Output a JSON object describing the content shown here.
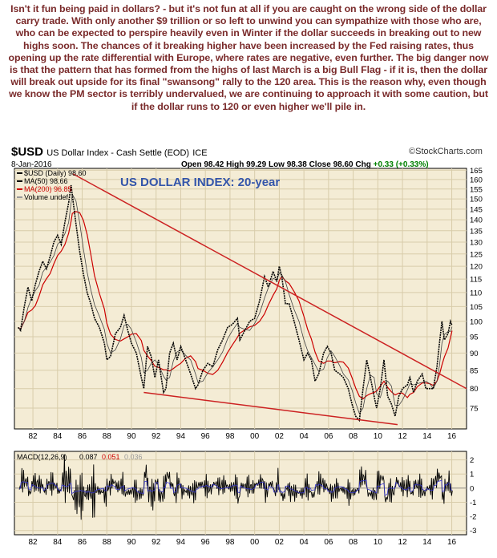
{
  "intro_text": "Isn't it fun being paid in dollars? - but it's not fun at all if you are caught on the wrong side of the dollar carry trade. With only another $9 trillion or so left to unwind you can sympathize with those who are, who can be expected to perspire heavily even in Winter if the dollar succeeds in breaking out to new highs soon. The chances of it breaking higher have been increased by the Fed raising rates, thus opening up the rate differential with Europe, where rates are negative, even further. The big danger now is that the pattern that has formed from the highs of last March is a big Bull Flag - if it is, then the dollar will break out upside for its final \"swansong\" rally to the 120 area. This is the reason why, even though we know the PM sector is terribly undervalued, we are continuing to approach it with some caution, but if the dollar runs to 120 or even higher we'll pile in.",
  "header": {
    "symbol": "$USD",
    "description": "US Dollar Index - Cash Settle (EOD)",
    "exchange": "ICE",
    "date": "8-Jan-2016",
    "open_label": "Open",
    "open": "98.42",
    "high_label": "High",
    "high": "99.29",
    "low_label": "Low",
    "low": "98.38",
    "close_label": "Close",
    "close": "98.60",
    "chg_label": "Chg",
    "chg": "+0.33 (+0.33%)",
    "brand": "©StockCharts.com"
  },
  "chart_data": [
    {
      "type": "line",
      "title": "US DOLLAR INDEX: 20-year",
      "legend": [
        {
          "label": "$USD (Daily) 98.60",
          "color": "#000000"
        },
        {
          "label": "MA(50) 98.66",
          "color": "#000000"
        },
        {
          "label": "MA(200) 96.85",
          "color": "#cc0000"
        },
        {
          "label": "Volume undef",
          "color": "#999999"
        }
      ],
      "legend_position": "top-left",
      "x_range": [
        1980.5,
        2017.2
      ],
      "ylim": [
        70,
        166
      ],
      "log_scale": true,
      "grid": true,
      "x_tick_labels": [
        "82",
        "84",
        "86",
        "88",
        "90",
        "92",
        "94",
        "96",
        "98",
        "00",
        "02",
        "04",
        "06",
        "08",
        "10",
        "12",
        "14",
        "16"
      ],
      "y_tick_labels": [
        "75",
        "80",
        "85",
        "90",
        "95",
        "100",
        "105",
        "110",
        "115",
        "120",
        "125",
        "130",
        "135",
        "140",
        "145",
        "150",
        "155",
        "160",
        "165"
      ],
      "series": [
        {
          "name": "$USD",
          "color": "#000000",
          "points": [
            [
              1980.8,
              98
            ],
            [
              1981.0,
              97
            ],
            [
              1981.3,
              105
            ],
            [
              1981.6,
              112
            ],
            [
              1981.9,
              107
            ],
            [
              1982.2,
              113
            ],
            [
              1982.5,
              118
            ],
            [
              1982.8,
              122
            ],
            [
              1983.1,
              119
            ],
            [
              1983.4,
              124
            ],
            [
              1983.7,
              130
            ],
            [
              1984.0,
              133
            ],
            [
              1984.3,
              129
            ],
            [
              1984.6,
              139
            ],
            [
              1984.9,
              148
            ],
            [
              1985.1,
              157
            ],
            [
              1985.2,
              152
            ],
            [
              1985.5,
              138
            ],
            [
              1985.8,
              126
            ],
            [
              1986.1,
              117
            ],
            [
              1986.4,
              110
            ],
            [
              1986.7,
              106
            ],
            [
              1987.0,
              101
            ],
            [
              1987.4,
              98
            ],
            [
              1987.8,
              93
            ],
            [
              1988.0,
              88
            ],
            [
              1988.3,
              89
            ],
            [
              1988.7,
              96
            ],
            [
              1989.1,
              98
            ],
            [
              1989.4,
              102
            ],
            [
              1989.7,
              97
            ],
            [
              1990.0,
              93
            ],
            [
              1990.4,
              90
            ],
            [
              1990.8,
              83
            ],
            [
              1991.0,
              80
            ],
            [
              1991.3,
              92
            ],
            [
              1991.6,
              89
            ],
            [
              1991.9,
              83
            ],
            [
              1992.2,
              88
            ],
            [
              1992.6,
              79
            ],
            [
              1992.8,
              80
            ],
            [
              1993.1,
              90
            ],
            [
              1993.4,
              93
            ],
            [
              1993.7,
              88
            ],
            [
              1994.0,
              92
            ],
            [
              1994.4,
              88
            ],
            [
              1994.8,
              84
            ],
            [
              1995.2,
              80
            ],
            [
              1995.4,
              81
            ],
            [
              1995.8,
              85
            ],
            [
              1996.2,
              87
            ],
            [
              1996.6,
              86
            ],
            [
              1997.0,
              91
            ],
            [
              1997.4,
              94
            ],
            [
              1997.8,
              98
            ],
            [
              1998.2,
              99
            ],
            [
              1998.6,
              101
            ],
            [
              1998.8,
              94
            ],
            [
              1999.2,
              97
            ],
            [
              1999.6,
              100
            ],
            [
              2000.0,
              101
            ],
            [
              2000.4,
              107
            ],
            [
              2000.8,
              116
            ],
            [
              2001.1,
              112
            ],
            [
              2001.5,
              118
            ],
            [
              2001.8,
              114
            ],
            [
              2002.0,
              120
            ],
            [
              2002.2,
              116
            ],
            [
              2002.5,
              106
            ],
            [
              2002.8,
              106
            ],
            [
              2003.2,
              100
            ],
            [
              2003.6,
              94
            ],
            [
              2004.0,
              88
            ],
            [
              2004.3,
              90
            ],
            [
              2004.6,
              88
            ],
            [
              2004.9,
              82
            ],
            [
              2005.2,
              84
            ],
            [
              2005.6,
              90
            ],
            [
              2005.9,
              92
            ],
            [
              2006.2,
              90
            ],
            [
              2006.5,
              85
            ],
            [
              2006.9,
              84
            ],
            [
              2007.2,
              83
            ],
            [
              2007.6,
              80
            ],
            [
              2007.9,
              76
            ],
            [
              2008.2,
              73
            ],
            [
              2008.5,
              72
            ],
            [
              2008.8,
              80
            ],
            [
              2009.1,
              88
            ],
            [
              2009.4,
              83
            ],
            [
              2009.7,
              78
            ],
            [
              2009.9,
              75
            ],
            [
              2010.2,
              80
            ],
            [
              2010.5,
              88
            ],
            [
              2010.8,
              78
            ],
            [
              2011.1,
              76
            ],
            [
              2011.4,
              73
            ],
            [
              2011.7,
              78
            ],
            [
              2012.0,
              80
            ],
            [
              2012.4,
              81
            ],
            [
              2012.6,
              83
            ],
            [
              2012.9,
              79
            ],
            [
              2013.2,
              82
            ],
            [
              2013.6,
              84
            ],
            [
              2013.9,
              80
            ],
            [
              2014.2,
              80
            ],
            [
              2014.5,
              80
            ],
            [
              2014.8,
              86
            ],
            [
              2015.0,
              93
            ],
            [
              2015.2,
              100
            ],
            [
              2015.4,
              94
            ],
            [
              2015.7,
              96
            ],
            [
              2015.9,
              100
            ],
            [
              2016.02,
              98.6
            ]
          ]
        },
        {
          "name": "MA(50)",
          "color": "#000000",
          "window_points": 2
        },
        {
          "name": "MA(200)",
          "color": "#cc0000",
          "window_points": 5
        }
      ],
      "annotations": {
        "trendline_top": {
          "from": [
            1985.25,
            163
          ],
          "to": [
            2017.2,
            80
          ],
          "color": "#cc2222"
        },
        "trendline_bottom": {
          "from": [
            1991.0,
            79
          ],
          "to": [
            2011.6,
            71
          ],
          "color": "#cc2222"
        }
      }
    },
    {
      "type": "line",
      "title": "MACD(12,26,9) 0.087, 0.051, 0.036",
      "legend": [
        {
          "label": "MACD(12,26,9)",
          "color": "#000000"
        },
        {
          "label": "0.087",
          "color": "#000000"
        },
        {
          "label": "0.051",
          "color": "#cc0000"
        },
        {
          "label": "0.036",
          "color": "#999999"
        }
      ],
      "ylim": [
        -3.3,
        2.6
      ],
      "y_tick_labels": [
        "2",
        "1",
        "0",
        "-1",
        "-2",
        "-3"
      ],
      "series": [
        {
          "name": "MACD",
          "color": "#000000",
          "note_values_from_oscillation": true
        },
        {
          "name": "Signal",
          "color": "#3333cc"
        }
      ]
    }
  ]
}
